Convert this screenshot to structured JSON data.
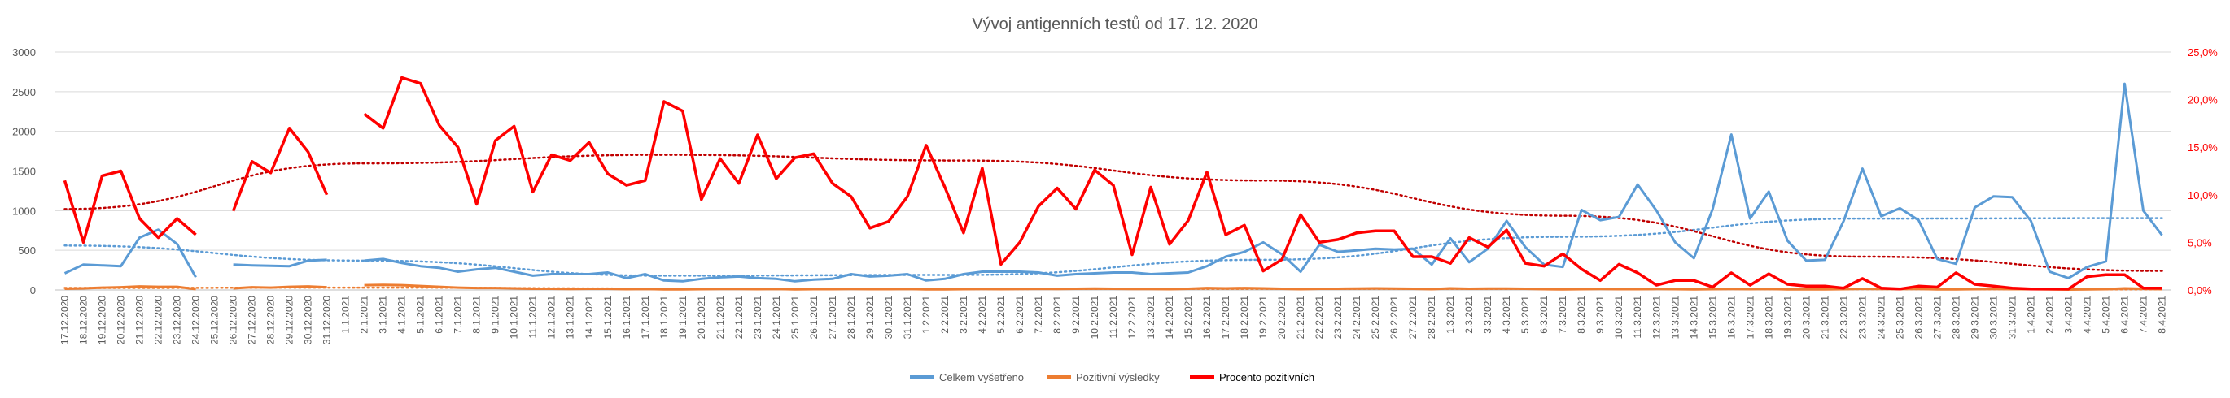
{
  "chart_data": {
    "type": "line",
    "title": "Vývoj antigenních testů od 17. 12. 2020",
    "y_left": {
      "ylim": [
        0,
        3000
      ],
      "ticks": [
        "0",
        "500",
        "1000",
        "1500",
        "2000",
        "2500",
        "3000"
      ]
    },
    "y_right": {
      "ylim": [
        0,
        25
      ],
      "ticks": [
        "0,0%",
        "5,0%",
        "10,0%",
        "15,0%",
        "20,0%",
        "25,0%"
      ]
    },
    "grid": true,
    "legend_position": "bottom",
    "categories": [
      "17.12.2020",
      "18.12.2020",
      "19.12.2020",
      "20.12.2020",
      "21.12.2020",
      "22.12.2020",
      "23.12.2020",
      "24.12.2020",
      "25.12.2020",
      "26.12.2020",
      "27.12.2020",
      "28.12.2020",
      "29.12.2020",
      "30.12.2020",
      "31.12.2020",
      "1.1.2021",
      "2.1.2021",
      "3.1.2021",
      "4.1.2021",
      "5.1.2021",
      "6.1.2021",
      "7.1.2021",
      "8.1.2021",
      "9.1.2021",
      "10.1.2021",
      "11.1.2021",
      "12.1.2021",
      "13.1.2021",
      "14.1.2021",
      "15.1.2021",
      "16.1.2021",
      "17.1.2021",
      "18.1.2021",
      "19.1.2021",
      "20.1.2021",
      "21.1.2021",
      "22.1.2021",
      "23.1.2021",
      "24.1.2021",
      "25.1.2021",
      "26.1.2021",
      "27.1.2021",
      "28.1.2021",
      "29.1.2021",
      "30.1.2021",
      "31.1.2021",
      "1.2.2021",
      "2.2.2021",
      "3.2.2021",
      "4.2.2021",
      "5.2.2021",
      "6.2.2021",
      "7.2.2021",
      "8.2.2021",
      "9.2.2021",
      "10.2.2021",
      "11.2.2021",
      "12.2.2021",
      "13.2.2021",
      "14.2.2021",
      "15.2.2021",
      "16.2.2021",
      "17.2.2021",
      "18.2.2021",
      "19.2.2021",
      "20.2.2021",
      "21.2.2021",
      "22.2.2021",
      "23.2.2021",
      "24.2.2021",
      "25.2.2021",
      "26.2.2021",
      "27.2.2021",
      "28.2.2021",
      "1.3.2021",
      "2.3.2021",
      "3.3.2021",
      "4.3.2021",
      "5.3.2021",
      "6.3.2021",
      "7.3.2021",
      "8.3.2021",
      "9.3.2021",
      "10.3.2021",
      "11.3.2021",
      "12.3.2021",
      "13.3.2021",
      "14.3.2021",
      "15.3.2021",
      "16.3.2021",
      "17.3.2021",
      "18.3.2021",
      "19.3.2021",
      "20.3.2021",
      "21.3.2021",
      "22.3.2021",
      "23.3.2021",
      "24.3.2021",
      "25.3.2021",
      "26.3.2021",
      "27.3.2021",
      "28.3.2021",
      "29.3.2021",
      "30.3.2021",
      "31.3.2021",
      "1.4.2021",
      "2.4.2021",
      "3.4.2021",
      "4.4.2021",
      "5.4.2021",
      "6.4.2021",
      "7.4.2021",
      "8.4.2021"
    ],
    "series": [
      {
        "name": "Celkem vyšetřeno",
        "axis": "left",
        "color": "#5B9BD5",
        "values": [
          210,
          320,
          310,
          300,
          660,
          760,
          580,
          160,
          null,
          320,
          310,
          305,
          300,
          370,
          380,
          null,
          370,
          390,
          340,
          300,
          280,
          230,
          260,
          280,
          230,
          180,
          200,
          200,
          200,
          220,
          150,
          200,
          120,
          110,
          140,
          160,
          170,
          150,
          140,
          110,
          130,
          140,
          200,
          170,
          180,
          200,
          120,
          140,
          200,
          230,
          230,
          230,
          220,
          180,
          200,
          210,
          220,
          220,
          200,
          210,
          220,
          300,
          420,
          480,
          600,
          450,
          230,
          570,
          480,
          500,
          520,
          510,
          520,
          320,
          650,
          350,
          520,
          870,
          540,
          320,
          290,
          1010,
          880,
          920,
          1330,
          1000,
          600,
          400,
          1020,
          1960,
          900,
          1240,
          620,
          370,
          380,
          870,
          1530,
          930,
          1030,
          880,
          390,
          330,
          1040,
          1180,
          1170,
          870,
          230,
          150,
          290,
          360,
          2600,
          1000,
          690
        ]
      },
      {
        "name": "Pozitivní výsledky",
        "axis": "left",
        "color": "#ED7D31",
        "values": [
          15,
          20,
          30,
          35,
          45,
          40,
          40,
          10,
          null,
          20,
          35,
          30,
          40,
          45,
          35,
          null,
          60,
          65,
          60,
          50,
          40,
          30,
          25,
          25,
          20,
          15,
          15,
          12,
          15,
          15,
          10,
          12,
          8,
          8,
          10,
          12,
          12,
          10,
          12,
          8,
          10,
          10,
          12,
          10,
          10,
          12,
          8,
          8,
          10,
          12,
          10,
          12,
          15,
          12,
          15,
          18,
          15,
          12,
          12,
          10,
          15,
          25,
          20,
          25,
          20,
          15,
          10,
          15,
          15,
          18,
          20,
          18,
          15,
          10,
          20,
          15,
          18,
          18,
          15,
          10,
          8,
          10,
          12,
          10,
          10,
          12,
          10,
          8,
          10,
          12,
          10,
          12,
          8,
          8,
          8,
          10,
          15,
          12,
          12,
          12,
          8,
          8,
          10,
          12,
          10,
          10,
          8,
          5,
          8,
          10,
          20,
          15,
          10
        ]
      },
      {
        "name": "Procento pozitivních",
        "axis": "right",
        "color": "#FF0000",
        "values": [
          11.5,
          5.0,
          12.0,
          12.5,
          7.5,
          5.5,
          7.5,
          5.8,
          null,
          8.3,
          13.5,
          12.3,
          17.0,
          14.5,
          10.0,
          null,
          18.5,
          17.0,
          22.3,
          21.7,
          17.3,
          15.0,
          9.0,
          15.7,
          17.2,
          10.3,
          14.2,
          13.6,
          15.5,
          12.2,
          11.0,
          11.5,
          19.8,
          18.8,
          9.5,
          13.8,
          11.2,
          16.3,
          11.7,
          13.9,
          14.3,
          11.2,
          9.8,
          6.5,
          7.2,
          9.8,
          15.2,
          10.8,
          6.0,
          12.8,
          2.7,
          5.0,
          8.8,
          10.7,
          8.5,
          12.6,
          11.0,
          3.7,
          10.8,
          4.8,
          7.3,
          12.4,
          5.8,
          6.8,
          2.0,
          3.2,
          7.9,
          5.0,
          5.3,
          6.0,
          6.2,
          6.2,
          3.5,
          3.5,
          2.8,
          5.5,
          4.5,
          6.3,
          2.8,
          2.5,
          3.8,
          2.2,
          1.0,
          2.7,
          1.8,
          0.5,
          1.0,
          1.0,
          0.3,
          1.8,
          0.5,
          1.7,
          0.6,
          0.4,
          0.4,
          0.2,
          1.2,
          0.2,
          0.1,
          0.4,
          0.3,
          1.8,
          0.6,
          0.4,
          0.2,
          0.1,
          0.1,
          0.1,
          1.4,
          1.6,
          1.6,
          0.2,
          0.2
        ]
      }
    ],
    "trendlines": [
      {
        "of": "Celkem vyšetřeno",
        "style": "dotted",
        "color": "#5B9BD5",
        "axis": "left",
        "values": [
          560,
          370,
          180,
          190,
          380,
          670,
          900,
          905
        ]
      },
      {
        "of": "Pozitivní výsledky",
        "style": "dotted",
        "color": "#ED7D31",
        "axis": "left",
        "values": [
          25,
          30,
          18,
          12,
          14,
          14,
          10,
          8
        ]
      },
      {
        "of": "Procento pozitivních",
        "style": "dotted",
        "color": "#C00000",
        "axis": "right",
        "values": [
          8.5,
          13.3,
          14.2,
          13.6,
          11.5,
          7.8,
          3.5,
          2.0
        ]
      }
    ]
  },
  "legend": [
    {
      "label": "Celkem vyšetřeno",
      "color": "#5B9BD5"
    },
    {
      "label": "Pozitivní výsledky",
      "color": "#ED7D31"
    },
    {
      "label": "Procento pozitivních",
      "color": "#FF0000"
    }
  ]
}
